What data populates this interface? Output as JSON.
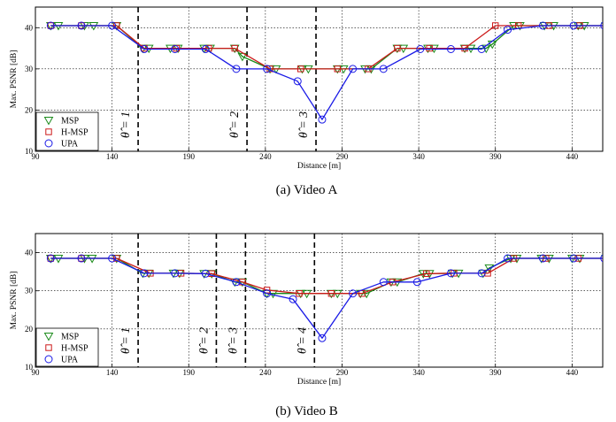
{
  "chart_data": [
    {
      "type": "line",
      "caption": "(a) Video A",
      "xlabel": "Distance [m]",
      "ylabel": "Max. PSNR [dB]",
      "xlim": [
        90,
        460
      ],
      "ylim": [
        10,
        45
      ],
      "xticks": [
        90,
        140,
        190,
        240,
        290,
        340,
        390,
        440
      ],
      "yticks": [
        10,
        20,
        30,
        40
      ],
      "grid": true,
      "legend": "bottom-left",
      "thresholds": [
        {
          "x": 157,
          "label": "θ̂ = 1"
        },
        {
          "x": 228,
          "label": "θ̂ = 2"
        },
        {
          "x": 273,
          "label": "θ̂ = 3"
        }
      ],
      "series": [
        {
          "name": "MSP",
          "marker": "triangle-down",
          "color": "#1a8a1a",
          "x": [
            100,
            105,
            122,
            128,
            143,
            160,
            164,
            178,
            183,
            200,
            204,
            220,
            225,
            243,
            247,
            264,
            268,
            287,
            291,
            305,
            309,
            326,
            330,
            346,
            350,
            370,
            374,
            384,
            388,
            402,
            406,
            422,
            428,
            444,
            448,
            462
          ],
          "y": [
            40.5,
            40.5,
            40.5,
            40.5,
            40.5,
            35,
            35,
            35,
            35,
            35,
            35,
            35,
            33,
            30,
            30,
            30,
            30,
            30,
            30,
            30,
            30,
            35,
            35,
            35,
            35,
            35,
            35,
            35,
            36,
            40.5,
            40.5,
            40.5,
            40.5,
            40.5,
            40.5,
            40.5
          ]
        },
        {
          "name": "H-MSP",
          "marker": "square",
          "color": "#cc1a1a",
          "x": [
            100,
            120,
            143,
            161,
            182,
            203,
            220,
            243,
            263,
            287,
            307,
            326,
            347,
            370,
            390,
            405,
            425,
            445,
            462
          ],
          "y": [
            40.5,
            40.5,
            40.5,
            35,
            35,
            35,
            35,
            30,
            30,
            30,
            30,
            35,
            35,
            35,
            40.5,
            40.5,
            40.5,
            40.5,
            40.5
          ]
        },
        {
          "name": "UPA",
          "marker": "circle",
          "color": "#1a1ae6",
          "x": [
            100,
            120,
            140,
            161,
            181,
            201,
            221,
            241,
            261,
            277,
            297,
            317,
            341,
            361,
            381,
            398,
            421,
            441,
            461
          ],
          "y": [
            40.5,
            40.5,
            40.5,
            34.8,
            34.8,
            34.8,
            30,
            30,
            27,
            17.7,
            30,
            30,
            34.8,
            34.8,
            34.8,
            39.5,
            40.5,
            40.5,
            40.5
          ]
        }
      ]
    },
    {
      "type": "line",
      "caption": "(b) Video B",
      "xlabel": "Distance [m]",
      "ylabel": "Max. PSNR [dB]",
      "xlim": [
        90,
        460
      ],
      "ylim": [
        10,
        45
      ],
      "xticks": [
        90,
        140,
        190,
        240,
        290,
        340,
        390,
        440
      ],
      "yticks": [
        10,
        20,
        30,
        40
      ],
      "grid": true,
      "legend": "bottom-left",
      "thresholds": [
        {
          "x": 157,
          "label": "θ̂ = 1"
        },
        {
          "x": 208,
          "label": "θ̂ = 2"
        },
        {
          "x": 227,
          "label": "θ̂ = 3"
        },
        {
          "x": 272,
          "label": "θ̂ = 4"
        }
      ],
      "series": [
        {
          "name": "MSP",
          "marker": "triangle-down",
          "color": "#1a8a1a",
          "x": [
            100,
            105,
            122,
            127,
            143,
            160,
            164,
            180,
            184,
            200,
            205,
            220,
            225,
            241,
            245,
            263,
            267,
            283,
            287,
            302,
            306,
            322,
            326,
            343,
            347,
            362,
            366,
            382,
            386,
            400,
            404,
            420,
            425,
            440,
            445,
            462
          ],
          "y": [
            38.5,
            38.5,
            38.5,
            38.5,
            38.5,
            34.6,
            34.6,
            34.6,
            34.6,
            34.5,
            34.5,
            32.3,
            32.3,
            29.3,
            29.3,
            29.3,
            29.3,
            29.3,
            29.3,
            29.3,
            29.3,
            32.3,
            32.3,
            34.5,
            34.5,
            34.6,
            34.6,
            34.6,
            36,
            38.5,
            38.5,
            38.5,
            38.5,
            38.5,
            38.5,
            38.5
          ]
        },
        {
          "name": "H-MSP",
          "marker": "square",
          "color": "#cc1a1a",
          "x": [
            100,
            120,
            143,
            165,
            185,
            205,
            225,
            241,
            262,
            283,
            303,
            323,
            345,
            363,
            385,
            402,
            423,
            444,
            462
          ],
          "y": [
            38.5,
            38.5,
            38.5,
            34.6,
            34.6,
            34.5,
            32.3,
            30.2,
            29.3,
            29.3,
            29.3,
            32.3,
            34.5,
            34.6,
            34.6,
            38.5,
            38.5,
            38.5,
            38.5
          ]
        },
        {
          "name": "UPA",
          "marker": "circle",
          "color": "#1a1ae6",
          "x": [
            100,
            120,
            140,
            161,
            181,
            201,
            221,
            241,
            258,
            277,
            297,
            317,
            339,
            361,
            381,
            398,
            421,
            441,
            461
          ],
          "y": [
            38.5,
            38.5,
            38.5,
            34.6,
            34.6,
            34.5,
            32.3,
            29.3,
            27.8,
            17.6,
            29.3,
            32.3,
            32.3,
            34.6,
            34.6,
            38.5,
            38.5,
            38.5,
            38.5
          ]
        }
      ]
    }
  ]
}
